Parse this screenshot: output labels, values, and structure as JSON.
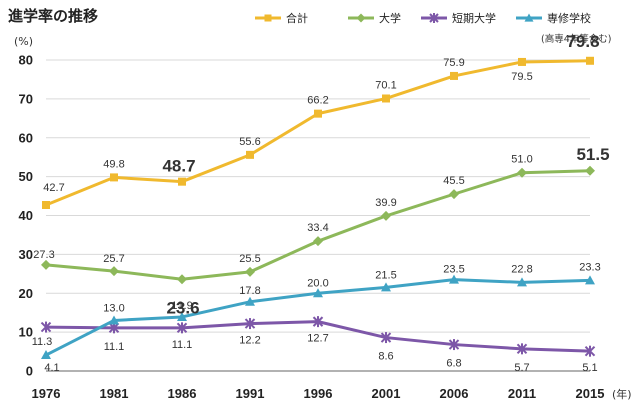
{
  "chart_data": {
    "type": "line",
    "title": "進学率の推移",
    "ylabel": "(%)",
    "xunit": "(年)",
    "note": "(高専4年等含む)",
    "ylim": [
      0,
      80
    ],
    "yticks": [
      "0",
      "10",
      "20",
      "30",
      "40",
      "50",
      "60",
      "70",
      "80"
    ],
    "categories": [
      "1976",
      "1981",
      "1986",
      "1991",
      "1996",
      "2001",
      "2006",
      "2011",
      "2015"
    ],
    "grid": true,
    "legend_position": "top",
    "series": [
      {
        "name": "合計",
        "color": "#f0b92e",
        "marker": "square",
        "values": [
          42.7,
          49.8,
          48.7,
          55.6,
          66.2,
          70.1,
          75.9,
          79.5,
          79.8
        ],
        "labels": [
          "42.7",
          "49.8",
          "48.7",
          "55.6",
          "66.2",
          "70.1",
          "75.9",
          "79.5",
          "79.8"
        ]
      },
      {
        "name": "大学",
        "color": "#8db85a",
        "marker": "diamond",
        "values": [
          27.3,
          25.7,
          23.6,
          25.5,
          33.4,
          39.9,
          45.5,
          51.0,
          51.5
        ],
        "labels": [
          "27.3",
          "25.7",
          "23.6",
          "25.5",
          "33.4",
          "39.9",
          "45.5",
          "51.0",
          "51.5"
        ]
      },
      {
        "name": "短期大学",
        "color": "#7d57a8",
        "marker": "star",
        "values": [
          11.3,
          11.1,
          11.1,
          12.2,
          12.7,
          8.6,
          6.8,
          5.7,
          5.1
        ],
        "labels": [
          "11.3",
          "11.1",
          "11.1",
          "12.2",
          "12.7",
          "8.6",
          "6.8",
          "5.7",
          "5.1"
        ]
      },
      {
        "name": "専修学校",
        "color": "#3fa3c4",
        "marker": "triangle",
        "values": [
          4.1,
          13.0,
          13.9,
          17.8,
          20.0,
          21.5,
          23.5,
          22.8,
          23.3
        ],
        "labels": [
          "4.1",
          "13.0",
          "13.9",
          "17.8",
          "20.0",
          "21.5",
          "23.5",
          "22.8",
          "23.3"
        ]
      }
    ]
  }
}
